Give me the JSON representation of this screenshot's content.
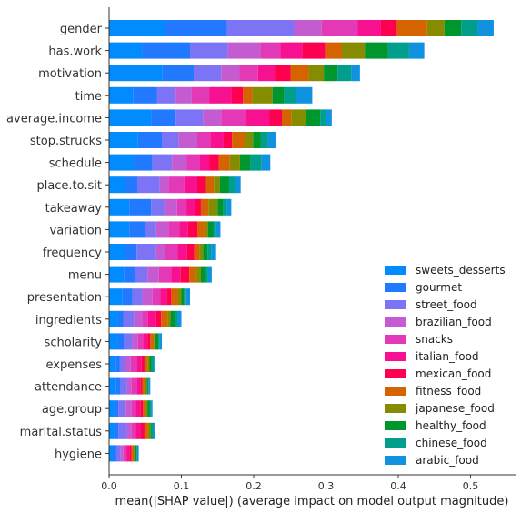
{
  "chart_data": {
    "type": "bar",
    "orientation": "horizontal",
    "stacked": true,
    "title": "",
    "xlabel": "mean(|SHAP value|) (average impact on model output magnitude)",
    "ylabel": "",
    "xlim": [
      0,
      0.56
    ],
    "xticks": [
      "0.0",
      "0.1",
      "0.2",
      "0.3",
      "0.4",
      "0.5"
    ],
    "legend_position": "lower-right",
    "categories": [
      "gender",
      "has.work",
      "motivation",
      "time",
      "average.income",
      "stop.strucks",
      "schedule",
      "place.to.sit",
      "takeaway",
      "variation",
      "frequency",
      "menu",
      "presentation",
      "ingredients",
      "scholarity",
      "expenses",
      "attendance",
      "age.group",
      "marital.status",
      "hygiene"
    ],
    "series": [
      {
        "name": "sweets_desserts",
        "color": "#008bff",
        "values": [
          0.078,
          0.046,
          0.074,
          0.033,
          0.058,
          0.04,
          0.034,
          0.022,
          0.028,
          0.028,
          0.022,
          0.021,
          0.018,
          0.012,
          0.012,
          0.009,
          0.009,
          0.007,
          0.007,
          0.005
        ]
      },
      {
        "name": "gourmet",
        "color": "#2179ff",
        "values": [
          0.085,
          0.066,
          0.043,
          0.033,
          0.034,
          0.033,
          0.026,
          0.017,
          0.03,
          0.022,
          0.016,
          0.015,
          0.014,
          0.008,
          0.009,
          0.006,
          0.007,
          0.006,
          0.006,
          0.005
        ]
      },
      {
        "name": "street_food",
        "color": "#7c74f4",
        "values": [
          0.093,
          0.052,
          0.038,
          0.026,
          0.038,
          0.023,
          0.027,
          0.031,
          0.018,
          0.015,
          0.027,
          0.017,
          0.014,
          0.015,
          0.011,
          0.007,
          0.009,
          0.01,
          0.012,
          0.006
        ]
      },
      {
        "name": "brazilian_food",
        "color": "#c45bd1",
        "values": [
          0.038,
          0.045,
          0.025,
          0.022,
          0.025,
          0.026,
          0.02,
          0.012,
          0.018,
          0.017,
          0.012,
          0.016,
          0.014,
          0.011,
          0.008,
          0.008,
          0.006,
          0.008,
          0.006,
          0.004
        ]
      },
      {
        "name": "snacks",
        "color": "#e439b7",
        "values": [
          0.05,
          0.028,
          0.026,
          0.025,
          0.034,
          0.018,
          0.018,
          0.022,
          0.013,
          0.015,
          0.018,
          0.017,
          0.011,
          0.008,
          0.007,
          0.008,
          0.008,
          0.006,
          0.006,
          0.004
        ]
      },
      {
        "name": "italian_food",
        "color": "#f7108f",
        "values": [
          0.032,
          0.03,
          0.023,
          0.03,
          0.033,
          0.018,
          0.014,
          0.018,
          0.012,
          0.012,
          0.013,
          0.013,
          0.009,
          0.011,
          0.006,
          0.007,
          0.004,
          0.006,
          0.007,
          0.004
        ]
      },
      {
        "name": "mexican_food",
        "color": "#ff0050",
        "values": [
          0.022,
          0.032,
          0.022,
          0.016,
          0.017,
          0.012,
          0.013,
          0.012,
          0.008,
          0.013,
          0.01,
          0.012,
          0.006,
          0.007,
          0.004,
          0.004,
          0.003,
          0.004,
          0.005,
          0.003
        ]
      },
      {
        "name": "fitness_food",
        "color": "#d46300",
        "values": [
          0.042,
          0.023,
          0.025,
          0.013,
          0.013,
          0.018,
          0.015,
          0.011,
          0.011,
          0.01,
          0.007,
          0.009,
          0.009,
          0.009,
          0.005,
          0.004,
          0.004,
          0.004,
          0.005,
          0.003
        ]
      },
      {
        "name": "japanese_food",
        "color": "#868c00",
        "values": [
          0.024,
          0.032,
          0.021,
          0.028,
          0.02,
          0.011,
          0.014,
          0.008,
          0.012,
          0.005,
          0.005,
          0.007,
          0.005,
          0.004,
          0.002,
          0.003,
          0.002,
          0.002,
          0.003,
          0.002
        ]
      },
      {
        "name": "healthy_food",
        "color": "#00962e",
        "values": [
          0.023,
          0.032,
          0.019,
          0.016,
          0.02,
          0.011,
          0.014,
          0.013,
          0.008,
          0.007,
          0.006,
          0.007,
          0.004,
          0.006,
          0.004,
          0.003,
          0.002,
          0.003,
          0.002,
          0.002
        ]
      },
      {
        "name": "chinese_food",
        "color": "#009f8c",
        "values": [
          0.023,
          0.029,
          0.019,
          0.016,
          0.008,
          0.01,
          0.016,
          0.008,
          0.005,
          0.004,
          0.005,
          0.003,
          0.002,
          0.004,
          0.002,
          0.003,
          0.001,
          0.002,
          0.002,
          0.001
        ]
      },
      {
        "name": "arabic_food",
        "color": "#0f93e0",
        "values": [
          0.022,
          0.021,
          0.012,
          0.023,
          0.008,
          0.011,
          0.012,
          0.008,
          0.006,
          0.006,
          0.007,
          0.005,
          0.006,
          0.005,
          0.003,
          0.002,
          0.002,
          0.002,
          0.002,
          0.002
        ]
      }
    ]
  }
}
